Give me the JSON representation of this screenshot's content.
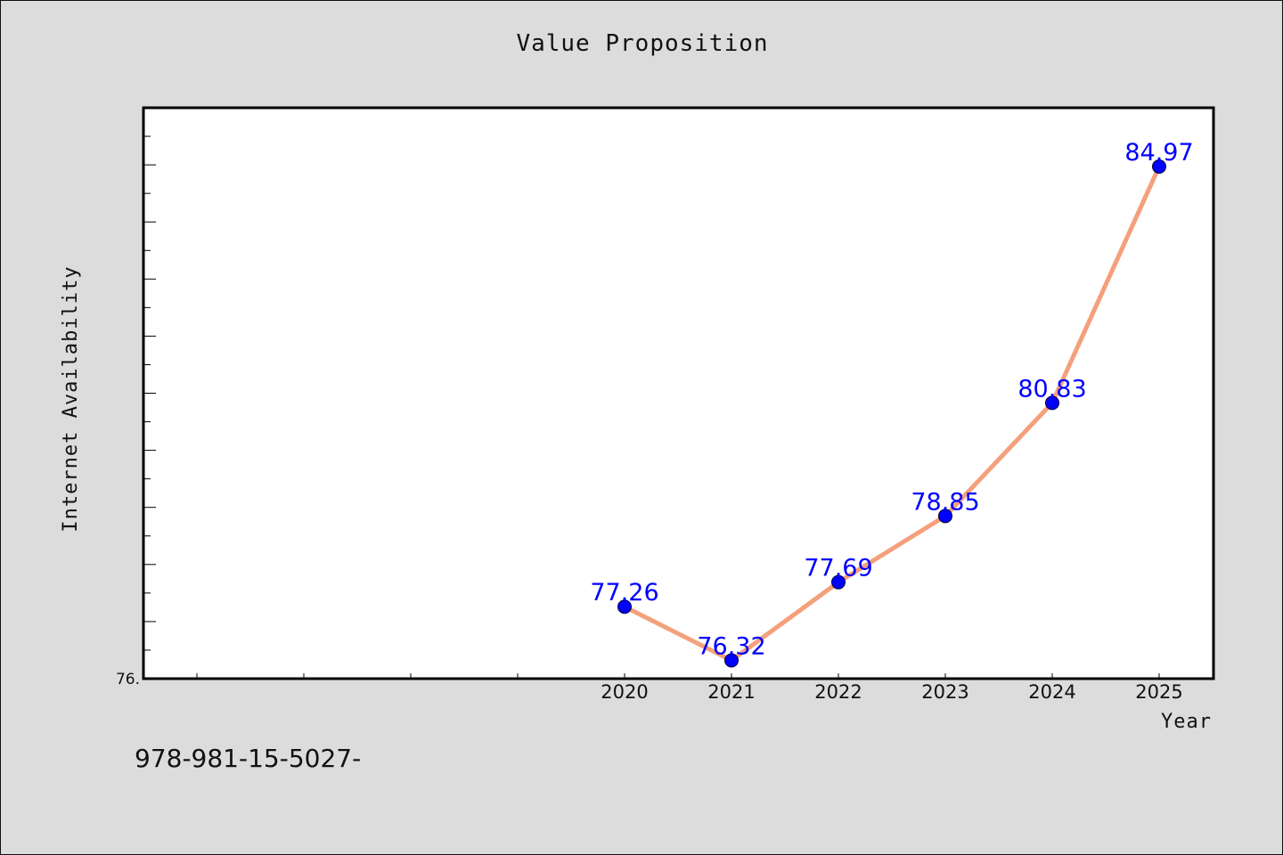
{
  "chart_data": {
    "type": "line",
    "title": "Value Proposition",
    "xlabel": "Year",
    "ylabel": "Internet Availability",
    "x": [
      "2020",
      "2021",
      "2022",
      "2023",
      "2024",
      "2025"
    ],
    "series": [
      {
        "values": [
          77.26,
          76.32,
          77.69,
          78.85,
          80.83,
          84.97
        ],
        "labels": [
          "77.26",
          "76.32",
          "77.69",
          "78.85",
          "80.83",
          "84.97"
        ]
      }
    ],
    "ylim": [
      76.0,
      86.0
    ],
    "y_tick_label": "76.",
    "grid": false,
    "legend": "none",
    "colors": {
      "line": "#f4a07c",
      "marker": "#0000ff",
      "data_label": "#0000ff",
      "background": "#dcdcdc",
      "plot_area": "#ffffff"
    }
  },
  "footnote": "978-981-15-5027-"
}
